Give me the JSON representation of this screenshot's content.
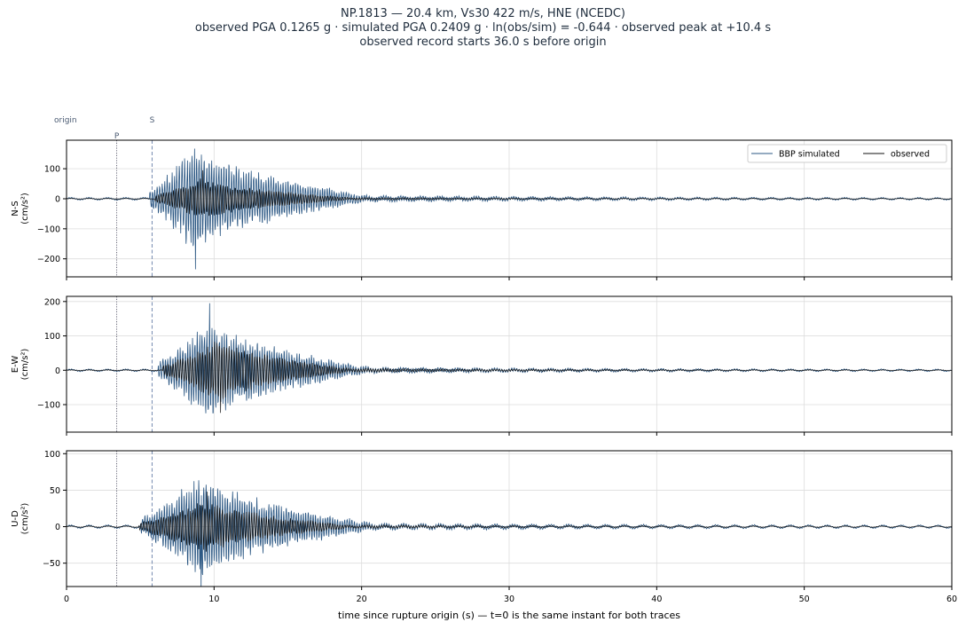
{
  "header": {
    "line1": "NP.1813  —  20.4 km, Vs30 422 m/s, HNE (NCEDC)",
    "line2": "observed PGA 0.1265 g   ·   simulated PGA 0.2409 g   ·   ln(obs/sim) = -0.644   ·   observed peak at +10.4 s",
    "line3": "observed record starts 36.0 s before origin"
  },
  "colors": {
    "simulated": "#2b5783",
    "observed": "#111111",
    "p_marker": "#666677",
    "s_marker": "#7f93b5",
    "grid": "#dddddd"
  },
  "chart_data": {
    "type": "line",
    "xlabel": "time since rupture origin (s)   —   t=0 is the same instant for both traces",
    "xlim": [
      0,
      60
    ],
    "xticks": [
      0,
      10,
      20,
      30,
      40,
      50,
      60
    ],
    "grid": true,
    "markers": [
      {
        "label": "origin",
        "t": 0
      },
      {
        "label": "P",
        "t": 3.4
      },
      {
        "label": "S",
        "t": 5.8
      }
    ],
    "legend": {
      "placement": "top-right",
      "entries": [
        "BBP simulated",
        "observed"
      ]
    },
    "panels": [
      {
        "component": "N-S",
        "ylabel": "N-S\n(cm/s²)",
        "ylim": [
          -260,
          195
        ],
        "yticks": [
          100,
          0,
          -100,
          -200
        ],
        "series": [
          {
            "name": "BBP simulated",
            "onset": 5.6,
            "pga_time": 8.7,
            "peak": 235,
            "decay_end": 21.5,
            "coda": 3.0
          },
          {
            "name": "observed",
            "onset": 6.0,
            "pga_time": 9.2,
            "peak": 95,
            "decay_end": 20.0,
            "coda": 1.0
          }
        ]
      },
      {
        "component": "E-W",
        "ylabel": "E-W\n(cm/s²)",
        "ylim": [
          -180,
          215
        ],
        "yticks": [
          200,
          100,
          0,
          -100
        ],
        "series": [
          {
            "name": "BBP simulated",
            "onset": 6.2,
            "pga_time": 9.7,
            "peak": 195,
            "decay_end": 21.5,
            "coda": 2.5
          },
          {
            "name": "observed",
            "onset": 6.5,
            "pga_time": 10.4,
            "peak": 124,
            "decay_end": 20.0,
            "coda": 1.0
          }
        ]
      },
      {
        "component": "U-D",
        "ylabel": "U-D\n(cm/s²)",
        "ylim": [
          -82,
          104
        ],
        "yticks": [
          100,
          50,
          0,
          -50
        ],
        "series": [
          {
            "name": "BBP simulated",
            "onset": 5.0,
            "pga_time": 9.2,
            "peak": 93,
            "decay_end": 22.0,
            "coda": 1.8
          },
          {
            "name": "observed",
            "onset": 4.9,
            "pga_time": 9.6,
            "peak": 48,
            "decay_end": 20.0,
            "coda": 0.8
          }
        ]
      }
    ]
  }
}
